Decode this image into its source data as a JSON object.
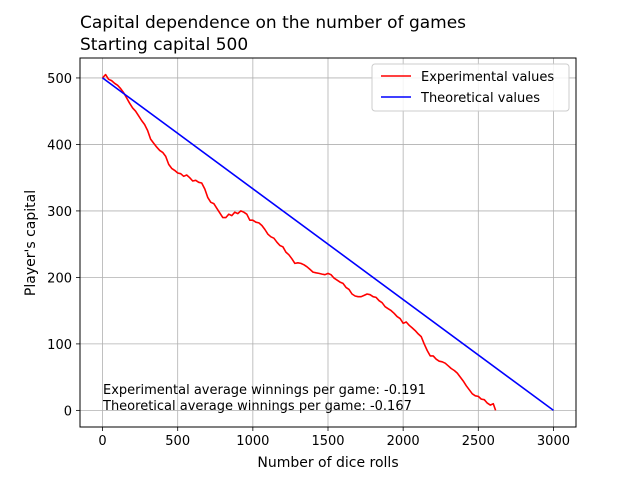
{
  "chart_data": {
    "type": "line",
    "title": "Capital dependence on the number of games",
    "subtitle": "Starting capital 500",
    "xlabel": "Number of dice rolls",
    "ylabel": "Player's capital",
    "xlim": [
      -150,
      3150
    ],
    "ylim": [
      -25,
      530
    ],
    "xticks": [
      0,
      500,
      1000,
      1500,
      2000,
      2500,
      3000
    ],
    "yticks": [
      0,
      100,
      200,
      300,
      400,
      500
    ],
    "grid": true,
    "legend_position": "top-right",
    "series": [
      {
        "name": "Experimental values",
        "color": "#ff0000",
        "x": [
          0,
          20,
          40,
          60,
          80,
          100,
          120,
          140,
          160,
          180,
          200,
          220,
          240,
          260,
          280,
          300,
          320,
          340,
          360,
          380,
          400,
          420,
          440,
          460,
          480,
          500,
          520,
          540,
          560,
          580,
          600,
          620,
          640,
          660,
          680,
          700,
          720,
          740,
          760,
          780,
          800,
          820,
          840,
          860,
          880,
          900,
          920,
          940,
          960,
          980,
          1000,
          1020,
          1040,
          1060,
          1080,
          1100,
          1120,
          1140,
          1160,
          1180,
          1200,
          1220,
          1240,
          1260,
          1280,
          1300,
          1320,
          1340,
          1360,
          1380,
          1400,
          1420,
          1440,
          1460,
          1480,
          1500,
          1520,
          1540,
          1560,
          1580,
          1600,
          1620,
          1640,
          1660,
          1680,
          1700,
          1720,
          1740,
          1760,
          1780,
          1800,
          1820,
          1840,
          1860,
          1880,
          1900,
          1920,
          1940,
          1960,
          1980,
          2000,
          2020,
          2040,
          2060,
          2080,
          2100,
          2120,
          2140,
          2160,
          2180,
          2200,
          2220,
          2240,
          2260,
          2280,
          2300,
          2320,
          2340,
          2360,
          2380,
          2400,
          2420,
          2440,
          2460,
          2480,
          2500,
          2520,
          2540,
          2560,
          2580,
          2600,
          2615
        ],
        "y": [
          500,
          505,
          498,
          496,
          492,
          489,
          484,
          478,
          470,
          462,
          455,
          450,
          443,
          436,
          430,
          421,
          408,
          402,
          396,
          391,
          388,
          382,
          370,
          364,
          361,
          357,
          356,
          352,
          354,
          350,
          345,
          346,
          343,
          342,
          333,
          320,
          313,
          311,
          304,
          297,
          290,
          290,
          295,
          293,
          298,
          296,
          300,
          298,
          295,
          286,
          286,
          283,
          282,
          278,
          272,
          265,
          261,
          259,
          253,
          248,
          246,
          238,
          234,
          228,
          221,
          222,
          221,
          219,
          216,
          212,
          208,
          207,
          206,
          205,
          204,
          206,
          204,
          199,
          196,
          193,
          191,
          185,
          182,
          175,
          172,
          171,
          171,
          173,
          175,
          174,
          171,
          170,
          165,
          162,
          156,
          153,
          150,
          146,
          141,
          138,
          131,
          133,
          128,
          124,
          120,
          115,
          111,
          100,
          90,
          82,
          82,
          77,
          74,
          73,
          71,
          67,
          63,
          60,
          56,
          50,
          44,
          37,
          31,
          25,
          22,
          21,
          17,
          16,
          11,
          8,
          10,
          0
        ]
      },
      {
        "name": "Theoretical values",
        "color": "#0000ff",
        "x": [
          0,
          3000
        ],
        "y": [
          500,
          0
        ]
      }
    ],
    "annotations": [
      "Experimental average winnings per game: -0.191",
      "Theoretical average winnings per game: -0.167"
    ]
  }
}
